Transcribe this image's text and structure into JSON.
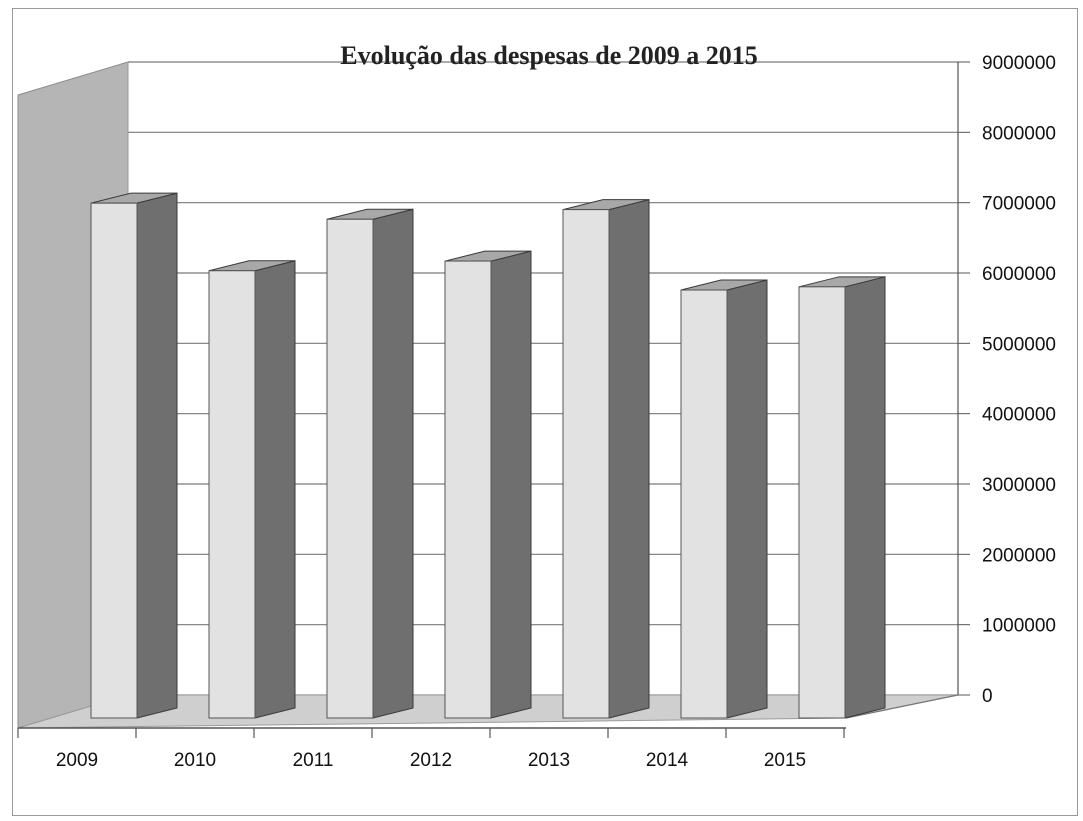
{
  "chart_data": {
    "type": "bar",
    "title": "Evolução das despesas de 2009 a 2015",
    "categories": [
      "2009",
      "2010",
      "2011",
      "2012",
      "2013",
      "2014",
      "2015"
    ],
    "values": [
      8000000,
      6950000,
      7750000,
      7100000,
      7900000,
      6650000,
      6700000
    ],
    "ylim": [
      0,
      9000000
    ],
    "yticks": [
      "0",
      "1000000",
      "2000000",
      "3000000",
      "4000000",
      "5000000",
      "6000000",
      "7000000",
      "8000000",
      "9000000"
    ],
    "yaxis_position": "right",
    "grid": true,
    "legend": "none",
    "colors": {
      "bar_front": "#e2e2e2",
      "bar_side": "#6f6f6f",
      "bar_top": "#a8a8a8",
      "back_wall": "#ffffff",
      "side_wall": "#b5b5b5",
      "floor": "#cfcfcf"
    }
  }
}
